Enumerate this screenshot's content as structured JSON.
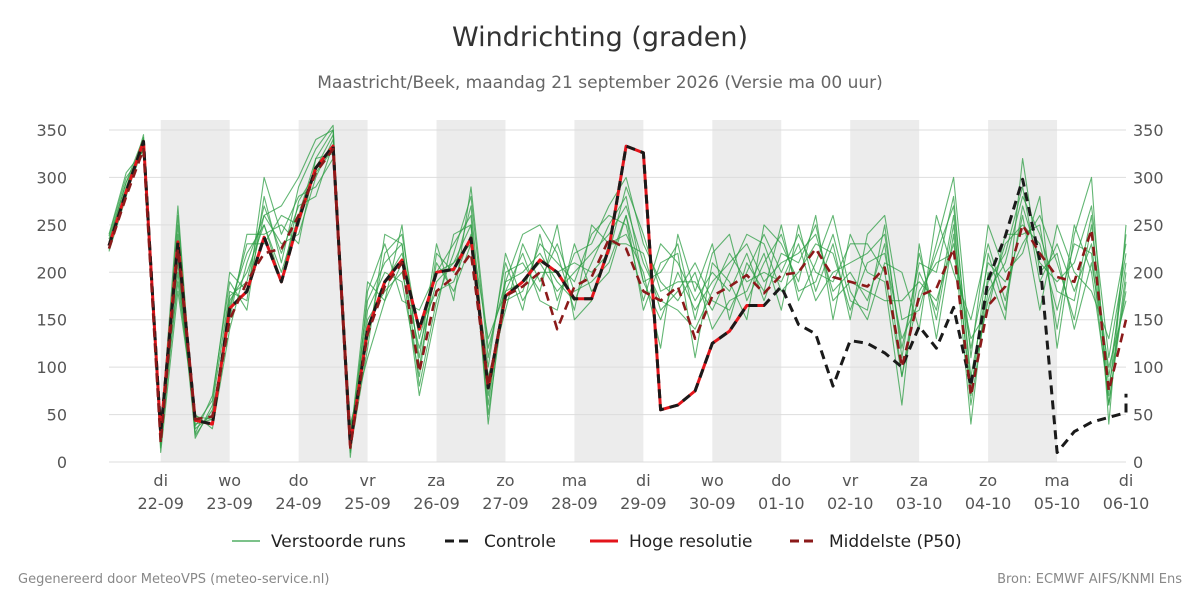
{
  "title": "Windrichting (graden)",
  "subtitle": "Maastricht/Beek, maandag 21 september 2026 (Versie ma 00 uur)",
  "footer_left": "Gegenereerd door MeteoVPS (meteo-service.nl)",
  "footer_right": "Bron: ECMWF AIFS/KNMI Ens",
  "colors": {
    "ensemble": "#2e9e44",
    "control": "#1a1a1a",
    "highres": "#e3141b",
    "median": "#8b1a1a",
    "shade": "#ececec",
    "grid": "#dddddd"
  },
  "chart_data": {
    "type": "line",
    "title": "Windrichting (graden)",
    "ylim": [
      0,
      360
    ],
    "y_ticks": [
      0,
      50,
      100,
      150,
      200,
      250,
      300,
      350
    ],
    "x_range": [
      "2026-09-21T06:00",
      "2026-10-06T00:00"
    ],
    "x_step_hours": 6,
    "day_labels": [
      {
        "day": "di",
        "date": "22-09",
        "t": "2026-09-22T00:00"
      },
      {
        "day": "wo",
        "date": "23-09",
        "t": "2026-09-23T00:00"
      },
      {
        "day": "do",
        "date": "24-09",
        "t": "2026-09-24T00:00"
      },
      {
        "day": "vr",
        "date": "25-09",
        "t": "2026-09-25T00:00"
      },
      {
        "day": "za",
        "date": "26-09",
        "t": "2026-09-26T00:00"
      },
      {
        "day": "zo",
        "date": "27-09",
        "t": "2026-09-27T00:00"
      },
      {
        "day": "ma",
        "date": "28-09",
        "t": "2026-09-28T00:00"
      },
      {
        "day": "di",
        "date": "29-09",
        "t": "2026-09-29T00:00"
      },
      {
        "day": "wo",
        "date": "30-09",
        "t": "2026-09-30T00:00"
      },
      {
        "day": "do",
        "date": "01-10",
        "t": "2026-10-01T00:00"
      },
      {
        "day": "vr",
        "date": "02-10",
        "t": "2026-10-02T00:00"
      },
      {
        "day": "za",
        "date": "03-10",
        "t": "2026-10-03T00:00"
      },
      {
        "day": "zo",
        "date": "04-10",
        "t": "2026-10-04T00:00"
      },
      {
        "day": "ma",
        "date": "05-10",
        "t": "2026-10-05T00:00"
      },
      {
        "day": "di",
        "date": "06-10",
        "t": "2026-10-06T00:00"
      }
    ],
    "shaded_periods": [
      [
        "2026-09-22T00:00",
        "2026-09-23T00:00"
      ],
      [
        "2026-09-24T00:00",
        "2026-09-25T00:00"
      ],
      [
        "2026-09-26T00:00",
        "2026-09-27T00:00"
      ],
      [
        "2026-09-28T00:00",
        "2026-09-29T00:00"
      ],
      [
        "2026-09-30T00:00",
        "2026-10-01T00:00"
      ],
      [
        "2026-10-02T00:00",
        "2026-10-03T00:00"
      ],
      [
        "2026-10-04T00:00",
        "2026-10-05T00:00"
      ]
    ],
    "legend": [
      {
        "label": "Verstoorde runs",
        "key": "ensemble"
      },
      {
        "label": "Controle",
        "key": "control"
      },
      {
        "label": "Hoge resolutie",
        "key": "highres"
      },
      {
        "label": "Middelste (P50)",
        "key": "median"
      }
    ],
    "series": [
      {
        "name": "Hoge resolutie",
        "key": "highres",
        "start": "2026-09-21T06:00",
        "values": [
          228,
          285,
          338,
          30,
          232,
          44,
          40,
          162,
          180,
          237,
          190,
          255,
          310,
          333,
          18,
          140,
          190,
          213,
          140,
          200,
          203,
          236,
          78,
          175,
          190,
          213,
          200,
          172,
          172,
          225,
          333,
          326,
          55,
          60,
          75,
          125,
          138,
          165,
          165
        ]
      },
      {
        "name": "Controle",
        "key": "control",
        "start": "2026-09-21T06:00",
        "values": [
          228,
          285,
          338,
          30,
          232,
          44,
          40,
          162,
          180,
          237,
          190,
          255,
          310,
          333,
          18,
          140,
          190,
          213,
          140,
          200,
          203,
          236,
          78,
          175,
          190,
          213,
          200,
          172,
          172,
          225,
          333,
          326,
          55,
          60,
          75,
          125,
          138,
          165,
          165,
          185,
          145,
          135,
          80,
          128,
          125,
          115,
          100,
          143,
          120,
          163,
          80,
          192,
          238,
          298,
          213,
          10,
          32,
          42,
          47,
          52,
          72
        ]
      },
      {
        "name": "Middelste (P50)",
        "key": "median",
        "start": "2026-09-21T06:00",
        "values": [
          225,
          280,
          330,
          20,
          225,
          45,
          48,
          150,
          190,
          220,
          225,
          260,
          305,
          330,
          15,
          135,
          185,
          210,
          95,
          180,
          195,
          220,
          80,
          175,
          185,
          200,
          140,
          185,
          195,
          235,
          225,
          180,
          170,
          185,
          130,
          175,
          185,
          197,
          178,
          197,
          200,
          225,
          195,
          190,
          185,
          205,
          100,
          175,
          183,
          225,
          70,
          165,
          185,
          250,
          220,
          195,
          190,
          245,
          75,
          150
        ]
      },
      {
        "name": "",
        "key": "ensemble",
        "start": "2026-09-21T06:00",
        "values": [
          230,
          290,
          340,
          15,
          200,
          40,
          45,
          170,
          200,
          250,
          200,
          260,
          320,
          350,
          10,
          150,
          180,
          200,
          120,
          190,
          210,
          250,
          60,
          190,
          200,
          220,
          190,
          170,
          210,
          250,
          280,
          190,
          150,
          200,
          160,
          190,
          210,
          230,
          190,
          210,
          220,
          240,
          180,
          200,
          170,
          230,
          90,
          200,
          160,
          260,
          60,
          180,
          210,
          280,
          240,
          180,
          170,
          260,
          60,
          200
        ]
      },
      {
        "name": "",
        "key": "ensemble",
        "start": "2026-09-21T06:00",
        "values": [
          235,
          295,
          330,
          30,
          270,
          25,
          60,
          180,
          170,
          300,
          240,
          280,
          290,
          320,
          25,
          170,
          210,
          230,
          80,
          170,
          220,
          280,
          110,
          210,
          160,
          240,
          170,
          220,
          230,
          270,
          300,
          230,
          190,
          170,
          200,
          140,
          170,
          180,
          220,
          160,
          250,
          180,
          230,
          150,
          240,
          260,
          150,
          160,
          230,
          300,
          110,
          250,
          200,
          220,
          280,
          120,
          240,
          300,
          40,
          250
        ]
      },
      {
        "name": "",
        "key": "ensemble",
        "start": "2026-09-21T06:00",
        "values": [
          222,
          280,
          345,
          10,
          180,
          50,
          35,
          140,
          210,
          260,
          230,
          240,
          300,
          340,
          40,
          110,
          170,
          250,
          100,
          210,
          180,
          230,
          90,
          160,
          230,
          190,
          230,
          180,
          190,
          210,
          260,
          160,
          210,
          220,
          110,
          210,
          190,
          150,
          250,
          230,
          190,
          260,
          150,
          240,
          200,
          190,
          60,
          230,
          130,
          240,
          40,
          200,
          150,
          320,
          200,
          220,
          140,
          210,
          100,
          170
        ]
      },
      {
        "name": "",
        "key": "ensemble",
        "start": "2026-09-21T06:00",
        "values": [
          238,
          300,
          325,
          40,
          240,
          30,
          70,
          190,
          160,
          280,
          210,
          290,
          330,
          355,
          5,
          180,
          230,
          170,
          160,
          200,
          230,
          260,
          40,
          200,
          210,
          180,
          250,
          150,
          170,
          230,
          240,
          200,
          120,
          240,
          180,
          230,
          150,
          210,
          180,
          250,
          170,
          210,
          260,
          180,
          150,
          210,
          200,
          140,
          260,
          200,
          150,
          230,
          170,
          260,
          160,
          250,
          200,
          180,
          130,
          230
        ]
      },
      {
        "name": "",
        "key": "ensemble",
        "start": "2026-09-21T06:00",
        "values": [
          226,
          285,
          335,
          20,
          220,
          35,
          50,
          160,
          230,
          230,
          260,
          250,
          310,
          345,
          30,
          140,
          190,
          220,
          140,
          180,
          190,
          240,
          130,
          180,
          190,
          210,
          180,
          200,
          220,
          240,
          270,
          210,
          170,
          160,
          140,
          180,
          220,
          190,
          200,
          190,
          230,
          170,
          200,
          210,
          220,
          240,
          120,
          210,
          200,
          280,
          80,
          170,
          230,
          250,
          230,
          160,
          230,
          220,
          60,
          190
        ]
      },
      {
        "name": "",
        "key": "ensemble",
        "start": "2026-09-21T06:00",
        "values": [
          232,
          295,
          342,
          25,
          250,
          45,
          40,
          175,
          190,
          270,
          220,
          270,
          280,
          335,
          15,
          160,
          200,
          190,
          90,
          220,
          200,
          270,
          70,
          170,
          180,
          230,
          210,
          190,
          240,
          260,
          250,
          170,
          230,
          210,
          170,
          200,
          180,
          220,
          170,
          220,
          210,
          250,
          170,
          190,
          180,
          170,
          170,
          190,
          170,
          230,
          120,
          210,
          190,
          230,
          260,
          210,
          150,
          250,
          90,
          210
        ]
      },
      {
        "name": "",
        "key": "ensemble",
        "start": "2026-09-21T06:00",
        "values": [
          228,
          288,
          338,
          35,
          210,
          28,
          55,
          150,
          240,
          240,
          250,
          230,
          320,
          325,
          35,
          130,
          220,
          240,
          130,
          200,
          210,
          230,
          100,
          220,
          170,
          200,
          200,
          210,
          200,
          220,
          290,
          240,
          180,
          190,
          190,
          160,
          200,
          240,
          230,
          180,
          200,
          230,
          220,
          160,
          210,
          220,
          130,
          170,
          220,
          270,
          90,
          190,
          220,
          290,
          190,
          230,
          180,
          230,
          80,
          180
        ]
      },
      {
        "name": "",
        "key": "ensemble",
        "start": "2026-09-21T06:00",
        "values": [
          240,
          305,
          328,
          18,
          260,
          38,
          65,
          200,
          180,
          260,
          270,
          300,
          340,
          350,
          22,
          190,
          170,
          210,
          70,
          160,
          240,
          250,
          50,
          180,
          220,
          170,
          160,
          230,
          180,
          200,
          260,
          190,
          200,
          230,
          150,
          220,
          240,
          170,
          210,
          240,
          180,
          190,
          240,
          170,
          160,
          250,
          110,
          220,
          150,
          250,
          70,
          220,
          160,
          270,
          210,
          190,
          210,
          270,
          110,
          220
        ]
      },
      {
        "name": "",
        "key": "ensemble",
        "start": "2026-09-21T06:00",
        "values": [
          224,
          282,
          332,
          28,
          190,
          48,
          45,
          165,
          220,
          250,
          190,
          275,
          305,
          330,
          12,
          120,
          240,
          230,
          110,
          230,
          170,
          290,
          120,
          190,
          240,
          250,
          220,
          160,
          250,
          230,
          230,
          220,
          160,
          180,
          210,
          170,
          160,
          200,
          240,
          200,
          240,
          200,
          190,
          230,
          230,
          200,
          90,
          180,
          210,
          220,
          130,
          160,
          240,
          240,
          250,
          140,
          250,
          200,
          70,
          240
        ]
      }
    ]
  }
}
